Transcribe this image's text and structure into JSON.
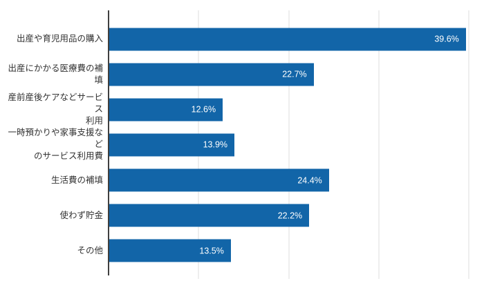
{
  "chart_data": {
    "type": "bar",
    "orientation": "horizontal",
    "title": "",
    "xlabel": "",
    "ylabel": "",
    "categories": [
      "出産や育児用品の購入",
      "出産にかかる医療費の補填",
      "産前産後ケアなどサービス\n利用",
      "一時預かりや家事支援など\nのサービス利用費",
      "生活費の補填",
      "使わず貯金",
      "その他"
    ],
    "values": [
      39.6,
      22.7,
      12.6,
      13.9,
      24.4,
      22.2,
      13.5
    ],
    "value_labels": [
      "39.6%",
      "22.7%",
      "12.6%",
      "13.9%",
      "24.4%",
      "22.2%",
      "13.5%"
    ],
    "value_label_position": "inside-end",
    "xlim": [
      0,
      40
    ],
    "gridline_interval": 10,
    "grid": true,
    "tick_labels_shown": false,
    "legend": false,
    "colors": {
      "bar": "#1265a8",
      "value_label": "#ffffff",
      "category_label": "#333333",
      "gridline": "#dcdcdc",
      "axis": "#3f3f3f",
      "background": "#ffffff"
    }
  }
}
